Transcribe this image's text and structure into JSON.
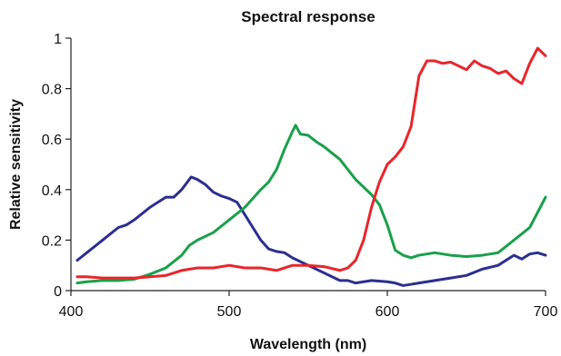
{
  "chart_data": {
    "type": "line",
    "title": "Spectral response",
    "xlabel": "Wavelength (nm)",
    "ylabel": "Relative sensitivity",
    "xlim": [
      400,
      700
    ],
    "ylim": [
      0,
      1
    ],
    "x_ticks": [
      400,
      500,
      600,
      700
    ],
    "y_ticks": [
      0,
      0.2,
      0.4,
      0.6,
      0.8,
      1
    ],
    "x_tick_labels": [
      "400",
      "500",
      "600",
      "700"
    ],
    "y_tick_labels": [
      "0",
      "0.2",
      "0.4",
      "0.6",
      "0.8",
      "1"
    ],
    "grid": false,
    "legend": "none",
    "series": [
      {
        "color": "#2b2f8f",
        "x": [
          404,
          410,
          420,
          430,
          435,
          440,
          450,
          460,
          465,
          470,
          476,
          480,
          485,
          490,
          495,
          500,
          505,
          510,
          515,
          520,
          525,
          530,
          535,
          540,
          550,
          560,
          570,
          575,
          580,
          590,
          600,
          605,
          610,
          615,
          620,
          630,
          640,
          650,
          660,
          670,
          680,
          685,
          690,
          695,
          700
        ],
        "values": [
          0.12,
          0.15,
          0.2,
          0.25,
          0.26,
          0.28,
          0.33,
          0.37,
          0.37,
          0.4,
          0.45,
          0.44,
          0.42,
          0.39,
          0.375,
          0.365,
          0.35,
          0.3,
          0.25,
          0.2,
          0.165,
          0.155,
          0.15,
          0.13,
          0.1,
          0.07,
          0.04,
          0.04,
          0.03,
          0.04,
          0.035,
          0.03,
          0.02,
          0.025,
          0.03,
          0.04,
          0.05,
          0.06,
          0.085,
          0.1,
          0.14,
          0.125,
          0.145,
          0.15,
          0.14
        ]
      },
      {
        "color": "#1aa04a",
        "x": [
          404,
          410,
          420,
          430,
          440,
          450,
          460,
          470,
          475,
          480,
          490,
          500,
          510,
          520,
          525,
          530,
          535,
          540,
          542,
          545,
          550,
          555,
          560,
          570,
          580,
          590,
          595,
          600,
          605,
          610,
          615,
          620,
          630,
          640,
          650,
          660,
          670,
          680,
          690,
          700
        ],
        "values": [
          0.03,
          0.035,
          0.04,
          0.04,
          0.045,
          0.065,
          0.09,
          0.14,
          0.18,
          0.2,
          0.23,
          0.28,
          0.33,
          0.4,
          0.43,
          0.48,
          0.56,
          0.63,
          0.655,
          0.62,
          0.615,
          0.59,
          0.57,
          0.52,
          0.44,
          0.38,
          0.34,
          0.26,
          0.16,
          0.14,
          0.13,
          0.14,
          0.15,
          0.14,
          0.135,
          0.14,
          0.15,
          0.2,
          0.25,
          0.37
        ]
      },
      {
        "color": "#e8262a",
        "x": [
          404,
          410,
          420,
          430,
          440,
          450,
          460,
          470,
          480,
          490,
          500,
          510,
          520,
          530,
          540,
          550,
          560,
          570,
          575,
          580,
          585,
          590,
          595,
          600,
          605,
          610,
          615,
          620,
          625,
          630,
          635,
          640,
          645,
          650,
          655,
          660,
          665,
          670,
          675,
          680,
          685,
          690,
          695,
          700
        ],
        "values": [
          0.055,
          0.055,
          0.05,
          0.05,
          0.05,
          0.055,
          0.06,
          0.08,
          0.09,
          0.09,
          0.1,
          0.09,
          0.09,
          0.08,
          0.1,
          0.1,
          0.095,
          0.08,
          0.09,
          0.12,
          0.2,
          0.33,
          0.43,
          0.5,
          0.53,
          0.57,
          0.65,
          0.85,
          0.91,
          0.91,
          0.9,
          0.905,
          0.89,
          0.875,
          0.91,
          0.89,
          0.88,
          0.86,
          0.87,
          0.84,
          0.82,
          0.9,
          0.96,
          0.93
        ]
      }
    ]
  }
}
